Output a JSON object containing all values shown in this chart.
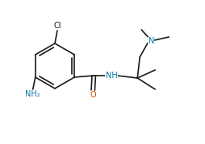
{
  "background_color": "#ffffff",
  "bond_color": "#1a1a1a",
  "atom_colors": {
    "N": "#0077aa",
    "O": "#cc4400",
    "Cl": "#1a1a1a",
    "NH2": "#0077aa",
    "NH": "#0077aa"
  },
  "figsize": [
    2.54,
    1.79
  ],
  "dpi": 100,
  "lw": 1.2,
  "fontsize": 7.0
}
